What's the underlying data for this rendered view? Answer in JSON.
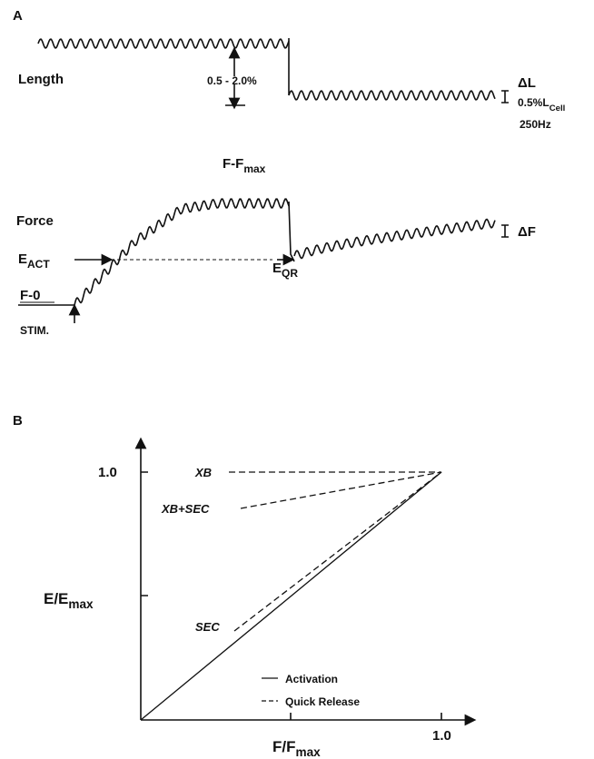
{
  "panel_a": {
    "label": "A",
    "length": {
      "title": "Length",
      "step": "0.5 - 2.0%",
      "delta": "ΔL",
      "scale": {
        "main": "0.5%L",
        "sub": "Cell"
      },
      "frequency": "250Hz"
    },
    "force": {
      "title": "Force",
      "peak": {
        "main": "F-F",
        "sub": "max"
      },
      "e_act": {
        "main": "E",
        "sub": "ACT"
      },
      "e_qr": {
        "main": "E",
        "sub": "QR"
      },
      "zero": "F-0",
      "stim": "STIM.",
      "delta": "ΔF"
    }
  },
  "panel_b": {
    "label": "B",
    "y_tick": "1.0",
    "x_tick": "1.0",
    "y_label": {
      "main": "E/E",
      "sub": "max"
    },
    "x_label": {
      "main": "F/F",
      "sub": "max"
    },
    "curves": {
      "xb": "XB",
      "xb_sec": "XB+SEC",
      "sec": "SEC"
    },
    "legend": [
      "Activation",
      "Quick Release"
    ]
  }
}
